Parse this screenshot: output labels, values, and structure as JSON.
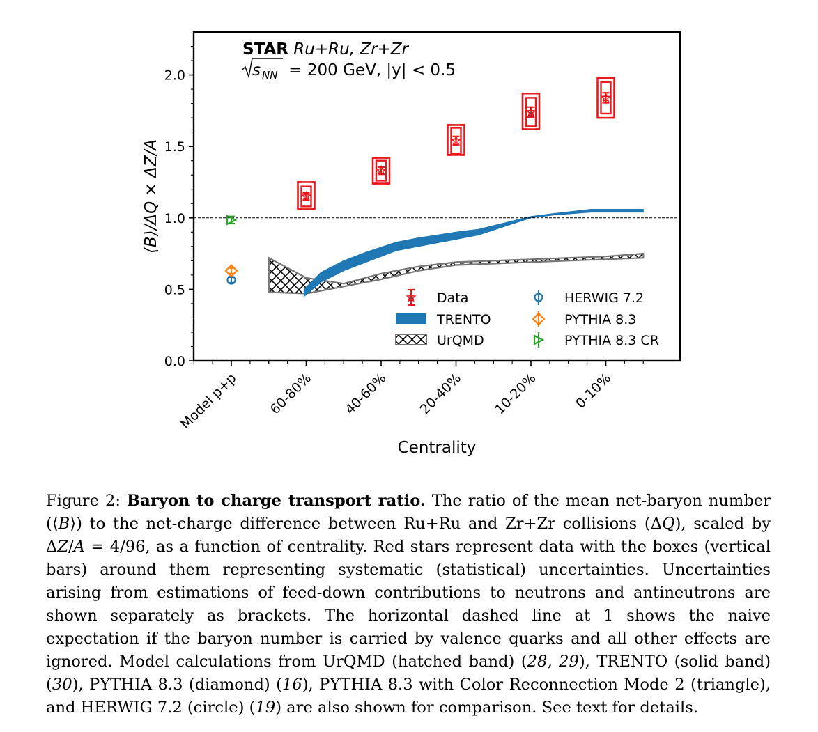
{
  "chart_data": {
    "type": "scatter",
    "experiment": "STAR",
    "system": "Ru+Ru, Zr+Zr",
    "energy_prefix": "s",
    "energy_sub": "NN",
    "energy_rest": " = 200 GeV, |y| < 0.5",
    "ylabel": "⟨B⟩/ΔQ × ΔZ/A",
    "xlabel": "Centrality",
    "ylim": [
      0.0,
      2.3
    ],
    "yticks": [
      0.0,
      0.5,
      1.0,
      1.5,
      2.0
    ],
    "ytick_labels": [
      "0.0",
      "0.5",
      "1.0",
      "1.5",
      "2.0"
    ],
    "categories": [
      "Model p+p",
      "60-80%",
      "40-60%",
      "20-40%",
      "10-20%",
      "0-10%"
    ],
    "reference_line": 1.0,
    "series": [
      {
        "name": "Data",
        "marker": "star",
        "color": "#e8191c",
        "x": [
          "60-80%",
          "40-60%",
          "20-40%",
          "10-20%",
          "0-10%"
        ],
        "y": [
          1.15,
          1.33,
          1.54,
          1.74,
          1.84
        ],
        "stat_err": [
          0.025,
          0.025,
          0.03,
          0.035,
          0.035
        ],
        "sys_err": [
          0.07,
          0.07,
          0.09,
          0.1,
          0.11
        ],
        "feeddown_low": [
          1.06,
          1.24,
          1.44,
          1.62,
          1.7
        ],
        "feeddown_high": [
          1.25,
          1.42,
          1.65,
          1.87,
          1.98
        ]
      },
      {
        "name": "TRENTO",
        "style": "solid band",
        "color": "#1f77b4",
        "x_pos": [
          0.97,
          1.2,
          1.5,
          1.8,
          2.2,
          2.5,
          3.0,
          3.3,
          4.0,
          4.3,
          4.8,
          5.5
        ],
        "lower": [
          0.45,
          0.55,
          0.63,
          0.69,
          0.77,
          0.8,
          0.85,
          0.88,
          1.0,
          1.02,
          1.04,
          1.04
        ],
        "upper": [
          0.5,
          0.62,
          0.7,
          0.76,
          0.83,
          0.86,
          0.9,
          0.92,
          1.01,
          1.03,
          1.06,
          1.06
        ]
      },
      {
        "name": "UrQMD",
        "style": "hatched band",
        "color": "#000000",
        "x_pos": [
          0.5,
          1.0,
          1.5,
          2.0,
          2.5,
          3.0,
          3.5,
          4.0,
          4.5,
          5.0,
          5.5
        ],
        "lower": [
          0.48,
          0.47,
          0.52,
          0.57,
          0.63,
          0.67,
          0.68,
          0.69,
          0.7,
          0.71,
          0.72
        ],
        "upper": [
          0.72,
          0.58,
          0.54,
          0.61,
          0.66,
          0.69,
          0.7,
          0.71,
          0.72,
          0.73,
          0.75
        ]
      },
      {
        "name": "HERWIG 7.2",
        "marker": "circle",
        "color": "#1f77b4",
        "x": [
          "Model p+p"
        ],
        "y": [
          0.565
        ],
        "err": [
          0.02
        ]
      },
      {
        "name": "PYTHIA 8.3",
        "marker": "diamond",
        "color": "#ff7f0e",
        "x": [
          "Model p+p"
        ],
        "y": [
          0.63
        ],
        "err": [
          0.02
        ]
      },
      {
        "name": "PYTHIA 8.3 CR",
        "marker": "triangle",
        "color": "#2ca02c",
        "x": [
          "Model p+p"
        ],
        "y": [
          0.985
        ],
        "err": [
          0.025
        ]
      }
    ],
    "legend": {
      "placement": "lower-right",
      "columns": [
        [
          "Data",
          "TRENTO",
          "UrQMD"
        ],
        [
          "HERWIG 7.2",
          "PYTHIA 8.3",
          "PYTHIA 8.3 CR"
        ]
      ]
    }
  },
  "caption": {
    "label": "Figure 2:",
    "title": "Baryon to charge transport ratio.",
    "t1": " The ratio of the mean net-baryon number (⟨",
    "b_var": "B",
    "t2": "⟩) to the net-charge difference between Ru+Ru and Zr+Zr collisions (Δ",
    "q_var": "Q",
    "t3": "), scaled by Δ",
    "z_var": "Z",
    "t4": "/",
    "a_var": "A",
    "t5": " = 4/96, as a function of centrality. Red stars represent data with the boxes (vertical bars) around them representing systematic (statistical) uncertainties. Uncertainties arising from estimations of feed-down contributions to neutrons and antineutrons are shown separately as brackets. The horizontal dashed line at 1 shows the naive expectation if the baryon number is carried by valence quarks and all other effects are ignored. Model calculations from UrQMD (hatched band) (",
    "ref1": "28, 29",
    "t6": "), TRENTO (solid band) (",
    "ref2": "30",
    "t7": "), PYTHIA 8.3 (diamond) (",
    "ref3": "16",
    "t8": "), PYTHIA 8.3 with Color Reconnection Mode 2 (triangle), and HERWIG 7.2 (circle) (",
    "ref4": "19",
    "t9": ") are also shown for comparison. See text for details."
  }
}
